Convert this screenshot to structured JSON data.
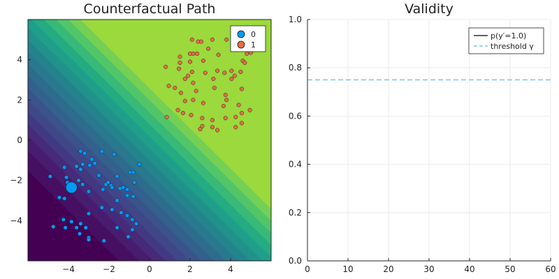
{
  "chart_data": [
    {
      "type": "contour-scatter",
      "title": "Counterfactual Path",
      "xlim": [
        -6,
        6
      ],
      "ylim": [
        -6,
        6
      ],
      "xticks": [
        -4,
        -2,
        0,
        2,
        4
      ],
      "yticks": [
        -4,
        -2,
        0,
        2,
        4
      ],
      "xtick_labels": [
        "−4",
        "−2",
        "0",
        "2",
        "4"
      ],
      "ytick_labels": [
        "−4",
        "−2",
        "0",
        "2",
        "4"
      ],
      "grid": false,
      "legend_position": "top-right",
      "contour": {
        "boundary": "x + y",
        "levels": [
          -7.5,
          -6.5,
          -5.8,
          -5.2,
          -4.6,
          -4.0,
          -3.4,
          -2.8,
          -2.2,
          -1.6,
          -1.0,
          -0.4,
          0.2,
          0.8,
          1.4,
          2.0,
          2.6
        ],
        "colors": [
          "#440154",
          "#470f62",
          "#481c6e",
          "#472a7a",
          "#433982",
          "#3f4788",
          "#3a538b",
          "#34608d",
          "#2e6c8e",
          "#29788e",
          "#24848d",
          "#21918c",
          "#1f9e89",
          "#25ab81",
          "#38b977",
          "#52c569",
          "#74d055",
          "#9bd93c",
          "#c2df23",
          "#fde725"
        ]
      },
      "series": [
        {
          "name": "0",
          "color": "#009af9",
          "points": [
            [
              -4.9,
              -1.8
            ],
            [
              -4.2,
              -1.35
            ],
            [
              -4.1,
              -1.85
            ],
            [
              -4.05,
              -2.1
            ],
            [
              -3.8,
              -2.3
            ],
            [
              -3.6,
              -1.3
            ],
            [
              -3.4,
              -1.45
            ],
            [
              -3.4,
              -0.55
            ],
            [
              -3.5,
              -2.0
            ],
            [
              -3.3,
              -1.2
            ],
            [
              -3.2,
              -0.65
            ],
            [
              -2.95,
              -1.25
            ],
            [
              -2.85,
              -0.95
            ],
            [
              -2.7,
              -1.15
            ],
            [
              -2.5,
              -1.75
            ],
            [
              -2.35,
              -0.55
            ],
            [
              -2.15,
              -2.2
            ],
            [
              -2.05,
              -2.1
            ],
            [
              -1.9,
              -2.25
            ],
            [
              -1.75,
              -0.7
            ],
            [
              -1.6,
              -1.8
            ],
            [
              -1.45,
              -2.4
            ],
            [
              -1.3,
              -2.35
            ],
            [
              -1.1,
              -2.45
            ],
            [
              -0.95,
              -1.6
            ],
            [
              -0.8,
              -1.6
            ],
            [
              -0.75,
              -2.1
            ],
            [
              -0.5,
              -1.2
            ],
            [
              -4.45,
              -2.85
            ],
            [
              -4.2,
              -2.9
            ],
            [
              -3.3,
              -2.2
            ],
            [
              -3.0,
              -2.55
            ],
            [
              -2.3,
              -2.45
            ],
            [
              -1.85,
              -2.35
            ],
            [
              -1.6,
              -3.0
            ],
            [
              -1.1,
              -2.75
            ],
            [
              -0.8,
              -2.8
            ],
            [
              -3.0,
              -3.65
            ],
            [
              -2.35,
              -3.35
            ],
            [
              -1.85,
              -3.45
            ],
            [
              -1.4,
              -3.6
            ],
            [
              -1.1,
              -3.75
            ],
            [
              -0.85,
              -3.95
            ],
            [
              -0.65,
              -4.15
            ],
            [
              -4.25,
              -3.95
            ],
            [
              -3.85,
              -4.05
            ],
            [
              -3.4,
              -4.15
            ],
            [
              -4.75,
              -4.3
            ],
            [
              -4.15,
              -4.35
            ],
            [
              -3.6,
              -4.35
            ],
            [
              -3.15,
              -4.35
            ],
            [
              -1.6,
              -4.35
            ],
            [
              -0.85,
              -4.45
            ],
            [
              -3.45,
              -4.65
            ],
            [
              -3.0,
              -4.85
            ],
            [
              -3.0,
              -4.95
            ],
            [
              -2.25,
              -5.0
            ],
            [
              -1.05,
              -4.8
            ]
          ]
        },
        {
          "name": "1",
          "color": "#e26f46",
          "points": [
            [
              2.1,
              5.0
            ],
            [
              2.4,
              4.9
            ],
            [
              3.1,
              5.0
            ],
            [
              3.8,
              5.0
            ],
            [
              4.4,
              5.0
            ],
            [
              2.9,
              4.55
            ],
            [
              3.4,
              4.25
            ],
            [
              4.75,
              4.5
            ],
            [
              2.15,
              4.3
            ],
            [
              2.35,
              4.3
            ],
            [
              2.0,
              3.9
            ],
            [
              2.65,
              3.95
            ],
            [
              1.5,
              4.15
            ],
            [
              1.5,
              3.85
            ],
            [
              0.8,
              3.65
            ],
            [
              1.45,
              3.55
            ],
            [
              2.1,
              3.4
            ],
            [
              1.9,
              3.2
            ],
            [
              1.75,
              3.05
            ],
            [
              2.75,
              3.35
            ],
            [
              3.15,
              3.05
            ],
            [
              3.35,
              3.45
            ],
            [
              3.7,
              3.35
            ],
            [
              4.05,
              3.45
            ],
            [
              4.2,
              3.2
            ],
            [
              4.6,
              3.95
            ],
            [
              4.7,
              3.85
            ],
            [
              4.5,
              3.4
            ],
            [
              4.05,
              3.05
            ],
            [
              4.55,
              2.55
            ],
            [
              2.15,
              2.85
            ],
            [
              1.25,
              2.6
            ],
            [
              0.95,
              2.7
            ],
            [
              1.55,
              2.35
            ],
            [
              2.3,
              2.45
            ],
            [
              3.2,
              2.6
            ],
            [
              3.75,
              2.25
            ],
            [
              1.75,
              1.95
            ],
            [
              2.15,
              2.0
            ],
            [
              2.65,
              1.85
            ],
            [
              3.65,
              1.7
            ],
            [
              3.8,
              2.0
            ],
            [
              4.4,
              1.75
            ],
            [
              4.55,
              1.35
            ],
            [
              4.95,
              1.5
            ],
            [
              1.4,
              1.5
            ],
            [
              1.65,
              1.35
            ],
            [
              2.05,
              1.25
            ],
            [
              0.85,
              1.15
            ],
            [
              2.6,
              1.1
            ],
            [
              3.1,
              1.0
            ],
            [
              3.75,
              1.1
            ],
            [
              4.25,
              1.15
            ],
            [
              2.6,
              0.7
            ],
            [
              3.1,
              0.65
            ],
            [
              2.5,
              0.55
            ],
            [
              4.25,
              0.65
            ],
            [
              4.55,
              0.85
            ],
            [
              3.35,
              0.5
            ],
            [
              5.0,
              4.35
            ],
            [
              4.9,
              5.0
            ],
            [
              2.0,
              4.3
            ],
            [
              2.55,
              4.9
            ],
            [
              4.8,
              4.3
            ]
          ]
        }
      ],
      "highlight_point": {
        "series": "0",
        "x": -3.85,
        "y": -2.35
      }
    },
    {
      "type": "line",
      "title": "Validity",
      "xlim": [
        0,
        60
      ],
      "ylim": [
        0,
        1
      ],
      "xticks": [
        0,
        10,
        20,
        30,
        40,
        50,
        60
      ],
      "yticks": [
        0,
        0.2,
        0.4,
        0.6,
        0.8,
        1.0
      ],
      "xtick_labels": [
        "0",
        "10",
        "20",
        "30",
        "40",
        "50",
        "60"
      ],
      "ytick_labels": [
        "0.0",
        "0.2",
        "0.4",
        "0.6",
        "0.8",
        "1.0"
      ],
      "grid": true,
      "legend_position": "top-right",
      "series": [
        {
          "name": "p(y′=1.0)",
          "color": "#000000",
          "style": "solid",
          "x": [],
          "y": []
        },
        {
          "name": "threshold γ",
          "color": "#6cb8e0",
          "style": "dashed",
          "x": [
            0,
            60
          ],
          "y": [
            0.75,
            0.75
          ]
        }
      ]
    }
  ]
}
